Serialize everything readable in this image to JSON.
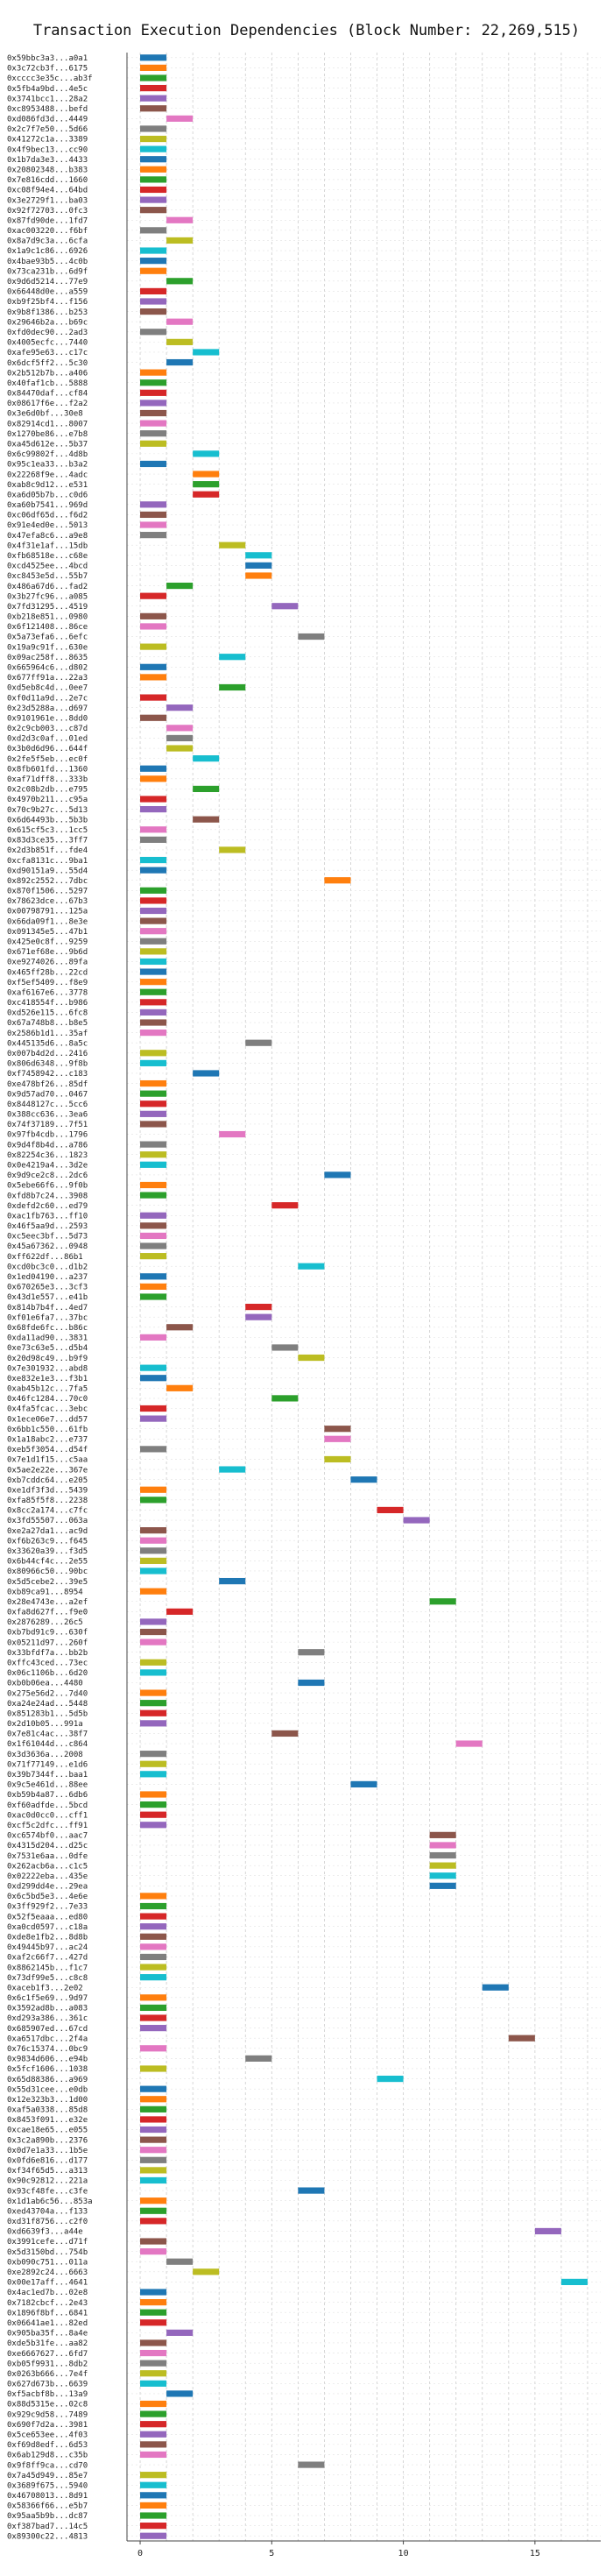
{
  "chart_data": {
    "type": "bar",
    "orientation": "horizontal",
    "title": "Transaction Execution Dependencies (Block Number: 22,269,515)",
    "xlabel": "",
    "ylabel": "",
    "xlim": [
      -0.5,
      17.5
    ],
    "xticks": [
      0,
      5,
      10,
      15
    ],
    "grid": true,
    "palette": [
      "#1f77b4",
      "#ff7f0e",
      "#2ca02c",
      "#d62728",
      "#9467bd",
      "#8c564b",
      "#e377c2",
      "#7f7f7f",
      "#bcbd22",
      "#17becf"
    ],
    "transactions": [
      {
        "label": "0x59bbc3a3...a0a1",
        "start": 0
      },
      {
        "label": "0x3c72cb3f...6175",
        "start": 0
      },
      {
        "label": "0xcccc3e35c...ab3f",
        "start": 0
      },
      {
        "label": "0x5fb4a9bd...4e5c",
        "start": 0
      },
      {
        "label": "0x3741bcc1...28a2",
        "start": 0
      },
      {
        "label": "0xc8953488...befd",
        "start": 0
      },
      {
        "label": "0xd086fd3d...4449",
        "start": 1
      },
      {
        "label": "0x2c7f7e50...5d66",
        "start": 0
      },
      {
        "label": "0x41272c1a...3389",
        "start": 0
      },
      {
        "label": "0x4f9bec13...cc90",
        "start": 0
      },
      {
        "label": "0x1b7da3e3...4433",
        "start": 0
      },
      {
        "label": "0x20802348...b383",
        "start": 0
      },
      {
        "label": "0x7e816cdd...1660",
        "start": 0
      },
      {
        "label": "0xc08f94e4...64bd",
        "start": 0
      },
      {
        "label": "0x3e2729f1...ba03",
        "start": 0
      },
      {
        "label": "0x92f72703...0fc3",
        "start": 0
      },
      {
        "label": "0x87fd90de...1fd7",
        "start": 1
      },
      {
        "label": "0xac003220...f6bf",
        "start": 0
      },
      {
        "label": "0x8a7d9c3a...6cfa",
        "start": 1
      },
      {
        "label": "0x1a9c1c86...6926",
        "start": 0
      },
      {
        "label": "0x4bae93b5...4c0b",
        "start": 0
      },
      {
        "label": "0x73ca231b...6d9f",
        "start": 0
      },
      {
        "label": "0x9d6d5214...77e9",
        "start": 1
      },
      {
        "label": "0x66448d0e...a559",
        "start": 0
      },
      {
        "label": "0xb9f25bf4...f156",
        "start": 0
      },
      {
        "label": "0x9b8f1386...b253",
        "start": 0
      },
      {
        "label": "0x29646b2a...b69c",
        "start": 1
      },
      {
        "label": "0xfd0dec90...2ad3",
        "start": 0
      },
      {
        "label": "0x4005ecfc...7440",
        "start": 1
      },
      {
        "label": "0xafe95e63...c17c",
        "start": 2
      },
      {
        "label": "0x6dcf5ff2...5c30",
        "start": 1
      },
      {
        "label": "0x2b512b7b...a406",
        "start": 0
      },
      {
        "label": "0x40faf1cb...5888",
        "start": 0
      },
      {
        "label": "0x84470daf...cf84",
        "start": 0
      },
      {
        "label": "0x08617f6e...f2a2",
        "start": 0
      },
      {
        "label": "0x3e6d0bf...30e8",
        "start": 0
      },
      {
        "label": "0x82914cd1...8007",
        "start": 0
      },
      {
        "label": "0x1270be86...e7b8",
        "start": 0
      },
      {
        "label": "0xa45d612e...5b37",
        "start": 0
      },
      {
        "label": "0x6c99802f...4d8b",
        "start": 2
      },
      {
        "label": "0x95c1ea33...b3a2",
        "start": 0
      },
      {
        "label": "0x22268f9e...4adc",
        "start": 2
      },
      {
        "label": "0xab8c9d12...e531",
        "start": 2
      },
      {
        "label": "0xa6d05b7b...c0d6",
        "start": 2
      },
      {
        "label": "0xa60b7541...969d",
        "start": 0
      },
      {
        "label": "0xc06df65d...f6d2",
        "start": 0
      },
      {
        "label": "0x91e4ed0e...5013",
        "start": 0
      },
      {
        "label": "0x47efa8c6...a9e8",
        "start": 0
      },
      {
        "label": "0x4f31e1af...15db",
        "start": 3
      },
      {
        "label": "0xfb68518e...c68e",
        "start": 4
      },
      {
        "label": "0xcd4525ee...4bcd",
        "start": 4
      },
      {
        "label": "0xc8453e5d...55b7",
        "start": 4
      },
      {
        "label": "0x486a67d6...fad2",
        "start": 1
      },
      {
        "label": "0x3b27fc96...a085",
        "start": 0
      },
      {
        "label": "0x7fd31295...4519",
        "start": 5
      },
      {
        "label": "0xb218e851...0980",
        "start": 0
      },
      {
        "label": "0x6f121408...86ce",
        "start": 0
      },
      {
        "label": "0x5a73efa6...6efc",
        "start": 6
      },
      {
        "label": "0x19a9c91f...630e",
        "start": 0
      },
      {
        "label": "0x09ac258f...8635",
        "start": 3
      },
      {
        "label": "0x665964c6...d802",
        "start": 0
      },
      {
        "label": "0x677ff91a...22a3",
        "start": 0
      },
      {
        "label": "0xd5eb8c4d...0ee7",
        "start": 3
      },
      {
        "label": "0xf0d11a9d...2e7c",
        "start": 0
      },
      {
        "label": "0x23d5288a...d697",
        "start": 1
      },
      {
        "label": "0x9101961e...8dd0",
        "start": 0
      },
      {
        "label": "0x2c9cb003...c87d",
        "start": 1
      },
      {
        "label": "0xd2d3c0af...01ed",
        "start": 1
      },
      {
        "label": "0x3b0d6d96...644f",
        "start": 1
      },
      {
        "label": "0x2fe5f5eb...ec0f",
        "start": 2
      },
      {
        "label": "0x8fb601fd...1360",
        "start": 0
      },
      {
        "label": "0xaf71dff8...333b",
        "start": 0
      },
      {
        "label": "0x2c08b2db...e795",
        "start": 2
      },
      {
        "label": "0x4970b211...c95a",
        "start": 0
      },
      {
        "label": "0x70c9b27c...5d13",
        "start": 0
      },
      {
        "label": "0x6d64493b...5b3b",
        "start": 2
      },
      {
        "label": "0x615cf5c3...1cc5",
        "start": 0
      },
      {
        "label": "0x83d3ce35...3ff7",
        "start": 0
      },
      {
        "label": "0x2d3b851f...fde4",
        "start": 3
      },
      {
        "label": "0xcfa8131c...9ba1",
        "start": 0
      },
      {
        "label": "0xd90151a9...55d4",
        "start": 0
      },
      {
        "label": "0x892c2552...7dbc",
        "start": 7
      },
      {
        "label": "0x870f1506...5297",
        "start": 0
      },
      {
        "label": "0x78623dce...67b3",
        "start": 0
      },
      {
        "label": "0x00798791...125a",
        "start": 0
      },
      {
        "label": "0x66da09f1...8e3e",
        "start": 0
      },
      {
        "label": "0x091345e5...47b1",
        "start": 0
      },
      {
        "label": "0x425e0c8f...9259",
        "start": 0
      },
      {
        "label": "0x671ef68e...9b6d",
        "start": 0
      },
      {
        "label": "0xe9274026...89fa",
        "start": 0
      },
      {
        "label": "0x465ff28b...22cd",
        "start": 0
      },
      {
        "label": "0xf5ef5409...f8e9",
        "start": 0
      },
      {
        "label": "0xaf6167e6...3778",
        "start": 0
      },
      {
        "label": "0xc418554f...b986",
        "start": 0
      },
      {
        "label": "0xd526e115...6fc8",
        "start": 0
      },
      {
        "label": "0x67a748b8...b8e5",
        "start": 0
      },
      {
        "label": "0x2586b1d1...35af",
        "start": 0
      },
      {
        "label": "0x445135d6...8a5c",
        "start": 4
      },
      {
        "label": "0x007b4d2d...2416",
        "start": 0
      },
      {
        "label": "0x806d6348...9f8b",
        "start": 0
      },
      {
        "label": "0xf7458942...c183",
        "start": 2
      },
      {
        "label": "0xe478bf26...85df",
        "start": 0
      },
      {
        "label": "0x9d57ad70...0467",
        "start": 0
      },
      {
        "label": "0x8448127c...5cc6",
        "start": 0
      },
      {
        "label": "0x388cc636...3ea6",
        "start": 0
      },
      {
        "label": "0x74f37189...7f51",
        "start": 0
      },
      {
        "label": "0x97fb4cdb...1796",
        "start": 3
      },
      {
        "label": "0x9d4f8b4d...a786",
        "start": 0
      },
      {
        "label": "0x82254c36...1823",
        "start": 0
      },
      {
        "label": "0x0e4219a4...3d2e",
        "start": 0
      },
      {
        "label": "0x9d9ce2c8...2dc6",
        "start": 7
      },
      {
        "label": "0x5ebe66f6...9f0b",
        "start": 0
      },
      {
        "label": "0xfd8b7c24...3908",
        "start": 0
      },
      {
        "label": "0xdefd2c60...ed79",
        "start": 5
      },
      {
        "label": "0xac1fb763...ff10",
        "start": 0
      },
      {
        "label": "0x46f5aa9d...2593",
        "start": 0
      },
      {
        "label": "0xc5eec3bf...5d73",
        "start": 0
      },
      {
        "label": "0x45a67362...0948",
        "start": 0
      },
      {
        "label": "0xff622df...86b1",
        "start": 0
      },
      {
        "label": "0xcd0bc3c0...d1b2",
        "start": 6
      },
      {
        "label": "0x1ed04190...a237",
        "start": 0
      },
      {
        "label": "0x670265e3...3cf3",
        "start": 0
      },
      {
        "label": "0x43d1e557...e41b",
        "start": 0
      },
      {
        "label": "0x814b7b4f...4ed7",
        "start": 4
      },
      {
        "label": "0xf01e6fa7...37bc",
        "start": 4
      },
      {
        "label": "0x68fde6fc...b86c",
        "start": 1
      },
      {
        "label": "0xda11ad90...3831",
        "start": 0
      },
      {
        "label": "0xe73c63e5...d5b4",
        "start": 5
      },
      {
        "label": "0x20d98c49...b9f9",
        "start": 6
      },
      {
        "label": "0x7e301932...abd8",
        "start": 0
      },
      {
        "label": "0xe832e1e3...f3b1",
        "start": 0
      },
      {
        "label": "0xab45b12c...7fa5",
        "start": 1
      },
      {
        "label": "0x46fc1284...70c0",
        "start": 5
      },
      {
        "label": "0x4fa5fcac...3ebc",
        "start": 0
      },
      {
        "label": "0x1ece06e7...dd57",
        "start": 0
      },
      {
        "label": "0x6bb1c550...61fb",
        "start": 7
      },
      {
        "label": "0x1a18abc2...e737",
        "start": 7
      },
      {
        "label": "0xeb5f3054...d54f",
        "start": 0
      },
      {
        "label": "0x7e1d1f15...c5aa",
        "start": 7
      },
      {
        "label": "0x5ae2e22e...367e",
        "start": 3
      },
      {
        "label": "0xb7cddc64...e205",
        "start": 8
      },
      {
        "label": "0xe1df3f3d...5439",
        "start": 0
      },
      {
        "label": "0xfa85f5f8...2238",
        "start": 0
      },
      {
        "label": "0x8cc2a174...c7fc",
        "start": 9
      },
      {
        "label": "0x3fd55507...063a",
        "start": 10
      },
      {
        "label": "0xe2a27da1...ac9d",
        "start": 0
      },
      {
        "label": "0xf6b263c9...f645",
        "start": 0
      },
      {
        "label": "0x33620a39...f3d5",
        "start": 0
      },
      {
        "label": "0x6b44cf4c...2e55",
        "start": 0
      },
      {
        "label": "0x80966c50...90bc",
        "start": 0
      },
      {
        "label": "0x5d5cebe2...39e5",
        "start": 3
      },
      {
        "label": "0xb89ca91...8954",
        "start": 0
      },
      {
        "label": "0x28e4743e...a2ef",
        "start": 11
      },
      {
        "label": "0xfa8d627f...f9e0",
        "start": 1
      },
      {
        "label": "0x2876289...26c5",
        "start": 0
      },
      {
        "label": "0xb7bd91c9...630f",
        "start": 0
      },
      {
        "label": "0x05211d97...260f",
        "start": 0
      },
      {
        "label": "0x33bfdf7a...bb2b",
        "start": 6
      },
      {
        "label": "0xffc43ced...73ec",
        "start": 0
      },
      {
        "label": "0x06c1106b...6d20",
        "start": 0
      },
      {
        "label": "0xb0b06ea...4480",
        "start": 6
      },
      {
        "label": "0x275e56d2...7d40",
        "start": 0
      },
      {
        "label": "0xa24e24ad...5448",
        "start": 0
      },
      {
        "label": "0x851283b1...5d5b",
        "start": 0
      },
      {
        "label": "0x2d10b05...991a",
        "start": 0
      },
      {
        "label": "0x7e81c4ac...38f7",
        "start": 5
      },
      {
        "label": "0x1f61044d...c864",
        "start": 12
      },
      {
        "label": "0x3d3636a...2008",
        "start": 0
      },
      {
        "label": "0x71f77149...e1d6",
        "start": 0
      },
      {
        "label": "0x39b7344f...baa1",
        "start": 0
      },
      {
        "label": "0x9c5e461d...88ee",
        "start": 8
      },
      {
        "label": "0xb59b4a87...6db6",
        "start": 0
      },
      {
        "label": "0xf60adfde...5bcd",
        "start": 0
      },
      {
        "label": "0xac0d0cc0...cff1",
        "start": 0
      },
      {
        "label": "0xcf5c2dfc...ff91",
        "start": 0
      },
      {
        "label": "0xc6574bf0...aac7",
        "start": 11
      },
      {
        "label": "0x4315d204...d25c",
        "start": 11
      },
      {
        "label": "0x7531e6aa...0dfe",
        "start": 11
      },
      {
        "label": "0x262acb6a...c1c5",
        "start": 11
      },
      {
        "label": "0x02222eba...435e",
        "start": 11
      },
      {
        "label": "0xd299dd4e...29ea",
        "start": 11
      },
      {
        "label": "0x6c5bd5e3...4e6e",
        "start": 0
      },
      {
        "label": "0x3ff929f2...7e33",
        "start": 0
      },
      {
        "label": "0x52f5eaaa...ed80",
        "start": 0
      },
      {
        "label": "0xa0cd0597...c18a",
        "start": 0
      },
      {
        "label": "0xde8e1fb2...8d8b",
        "start": 0
      },
      {
        "label": "0x49445b97...ac24",
        "start": 0
      },
      {
        "label": "0xaf2c66f7...427d",
        "start": 0
      },
      {
        "label": "0x8862145b...f1c7",
        "start": 0
      },
      {
        "label": "0x73df99e5...c8c8",
        "start": 0
      },
      {
        "label": "0xaceb1f3...2e02",
        "start": 13
      },
      {
        "label": "0x6c1f5e69...9d97",
        "start": 0
      },
      {
        "label": "0x3592ad8b...a083",
        "start": 0
      },
      {
        "label": "0xd293a386...361c",
        "start": 0
      },
      {
        "label": "0x685907ed...67cd",
        "start": 0
      },
      {
        "label": "0xa6517dbc...2f4a",
        "start": 14
      },
      {
        "label": "0x76c15374...0bc9",
        "start": 0
      },
      {
        "label": "0x9834d606...e94b",
        "start": 4
      },
      {
        "label": "0x5fcf1606...1038",
        "start": 0
      },
      {
        "label": "0x65d88386...a969",
        "start": 9
      },
      {
        "label": "0x55d31cee...e0db",
        "start": 0
      },
      {
        "label": "0x12e323b3...1d00",
        "start": 0
      },
      {
        "label": "0xaf5a0338...85d8",
        "start": 0
      },
      {
        "label": "0x8453f091...e32e",
        "start": 0
      },
      {
        "label": "0xcae18e65...e055",
        "start": 0
      },
      {
        "label": "0x3c2a890b...2376",
        "start": 0
      },
      {
        "label": "0x0d7e1a33...1b5e",
        "start": 0
      },
      {
        "label": "0x0fd6e816...d177",
        "start": 0
      },
      {
        "label": "0xf34f65d5...a313",
        "start": 0
      },
      {
        "label": "0x90c92812...221a",
        "start": 0
      },
      {
        "label": "0x93cf48fe...c3fe",
        "start": 6
      },
      {
        "label": "0x1d1ab6c56...853a",
        "start": 0
      },
      {
        "label": "0xed43704a...f133",
        "start": 0
      },
      {
        "label": "0xd31f8756...c2f0",
        "start": 0
      },
      {
        "label": "0xd6639f3...a44e",
        "start": 15
      },
      {
        "label": "0x3991cefe...d71f",
        "start": 0
      },
      {
        "label": "0x5d3150bd...754b",
        "start": 0
      },
      {
        "label": "0xb090c751...011a",
        "start": 1
      },
      {
        "label": "0xe2892c24...6663",
        "start": 2
      },
      {
        "label": "0x00e17aff...4641",
        "start": 16
      },
      {
        "label": "0x4ac1ed7b...02e8",
        "start": 0
      },
      {
        "label": "0x7182cbcf...2e43",
        "start": 0
      },
      {
        "label": "0x1896f8bf...6841",
        "start": 0
      },
      {
        "label": "0x06641ae1...82ed",
        "start": 0
      },
      {
        "label": "0x905ba35f...8a4e",
        "start": 1
      },
      {
        "label": "0xde5b31fe...aa82",
        "start": 0
      },
      {
        "label": "0xe6667627...6fd7",
        "start": 0
      },
      {
        "label": "0xb05f9931...8db2",
        "start": 0
      },
      {
        "label": "0x0263b666...7e4f",
        "start": 0
      },
      {
        "label": "0x627d673b...6639",
        "start": 0
      },
      {
        "label": "0xf5acbf8b...13a9",
        "start": 1
      },
      {
        "label": "0x88d5315e...02c8",
        "start": 0
      },
      {
        "label": "0x929c9d58...7489",
        "start": 0
      },
      {
        "label": "0x690f7d2a...3981",
        "start": 0
      },
      {
        "label": "0x5ce653ee...4f03",
        "start": 0
      },
      {
        "label": "0xf69d8edf...6d53",
        "start": 0
      },
      {
        "label": "0x6ab129d8...c35b",
        "start": 0
      },
      {
        "label": "0x9f8ff9ca...cd70",
        "start": 6
      },
      {
        "label": "0x7a45d949...85e7",
        "start": 0
      },
      {
        "label": "0x3689f675...5940",
        "start": 0
      },
      {
        "label": "0x46708013...8d91",
        "start": 0
      },
      {
        "label": "0x58366f66...e5b7",
        "start": 0
      },
      {
        "label": "0x95aa5b9b...dc87",
        "start": 0
      },
      {
        "label": "0xf387bad7...14c5",
        "start": 0
      },
      {
        "label": "0x89300c22...4813",
        "start": 0
      }
    ]
  }
}
